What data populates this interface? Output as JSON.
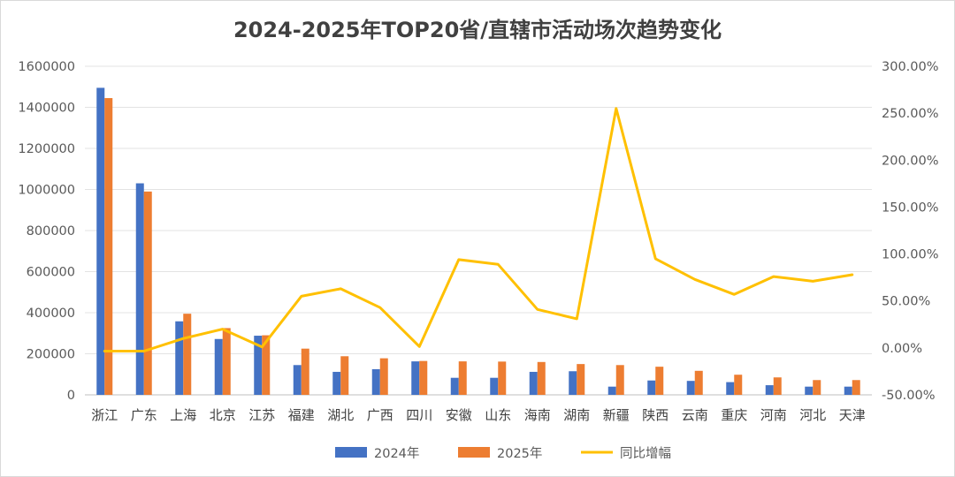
{
  "chart_data": {
    "type": "bar",
    "title": "2024-2025年TOP20省/直辖市活动场次趋势变化",
    "categories": [
      "浙江",
      "广东",
      "上海",
      "北京",
      "江苏",
      "福建",
      "湖北",
      "广西",
      "四川",
      "安徽",
      "山东",
      "海南",
      "湖南",
      "新疆",
      "陕西",
      "云南",
      "重庆",
      "河南",
      "河北",
      "天津"
    ],
    "series": [
      {
        "name": "2024年",
        "type": "bar",
        "axis": "left",
        "color": "#4472C4",
        "values": [
          1495000,
          1030000,
          358000,
          272000,
          288000,
          145000,
          112000,
          125000,
          163000,
          83000,
          83000,
          112000,
          115000,
          40000,
          70000,
          68000,
          62000,
          47000,
          40000,
          40000
        ]
      },
      {
        "name": "2025年",
        "type": "bar",
        "axis": "left",
        "color": "#ED7D31",
        "values": [
          1445000,
          990000,
          395000,
          325000,
          290000,
          225000,
          188000,
          178000,
          165000,
          163000,
          162000,
          160000,
          150000,
          145000,
          137000,
          117000,
          98000,
          85000,
          72000,
          72000
        ]
      },
      {
        "name": "同比增幅",
        "type": "line",
        "axis": "right",
        "color": "#FFC000",
        "values": [
          -3.4,
          -3.4,
          10,
          20,
          1,
          55,
          63,
          43,
          1.5,
          94,
          89,
          41,
          31,
          255,
          95,
          73,
          57,
          76,
          71,
          78
        ]
      }
    ],
    "y_left": {
      "min": 0,
      "max": 1600000,
      "step": 200000,
      "tick_labels": [
        "0",
        "200000",
        "400000",
        "600000",
        "800000",
        "1000000",
        "1200000",
        "1400000",
        "1600000"
      ]
    },
    "y_right": {
      "min": -50,
      "max": 300,
      "step": 50,
      "unit": "%",
      "tick_labels": [
        "-50.00%",
        "0.00%",
        "50.00%",
        "100.00%",
        "150.00%",
        "200.00%",
        "250.00%",
        "300.00%"
      ]
    },
    "grid": true,
    "legend_position": "bottom"
  }
}
